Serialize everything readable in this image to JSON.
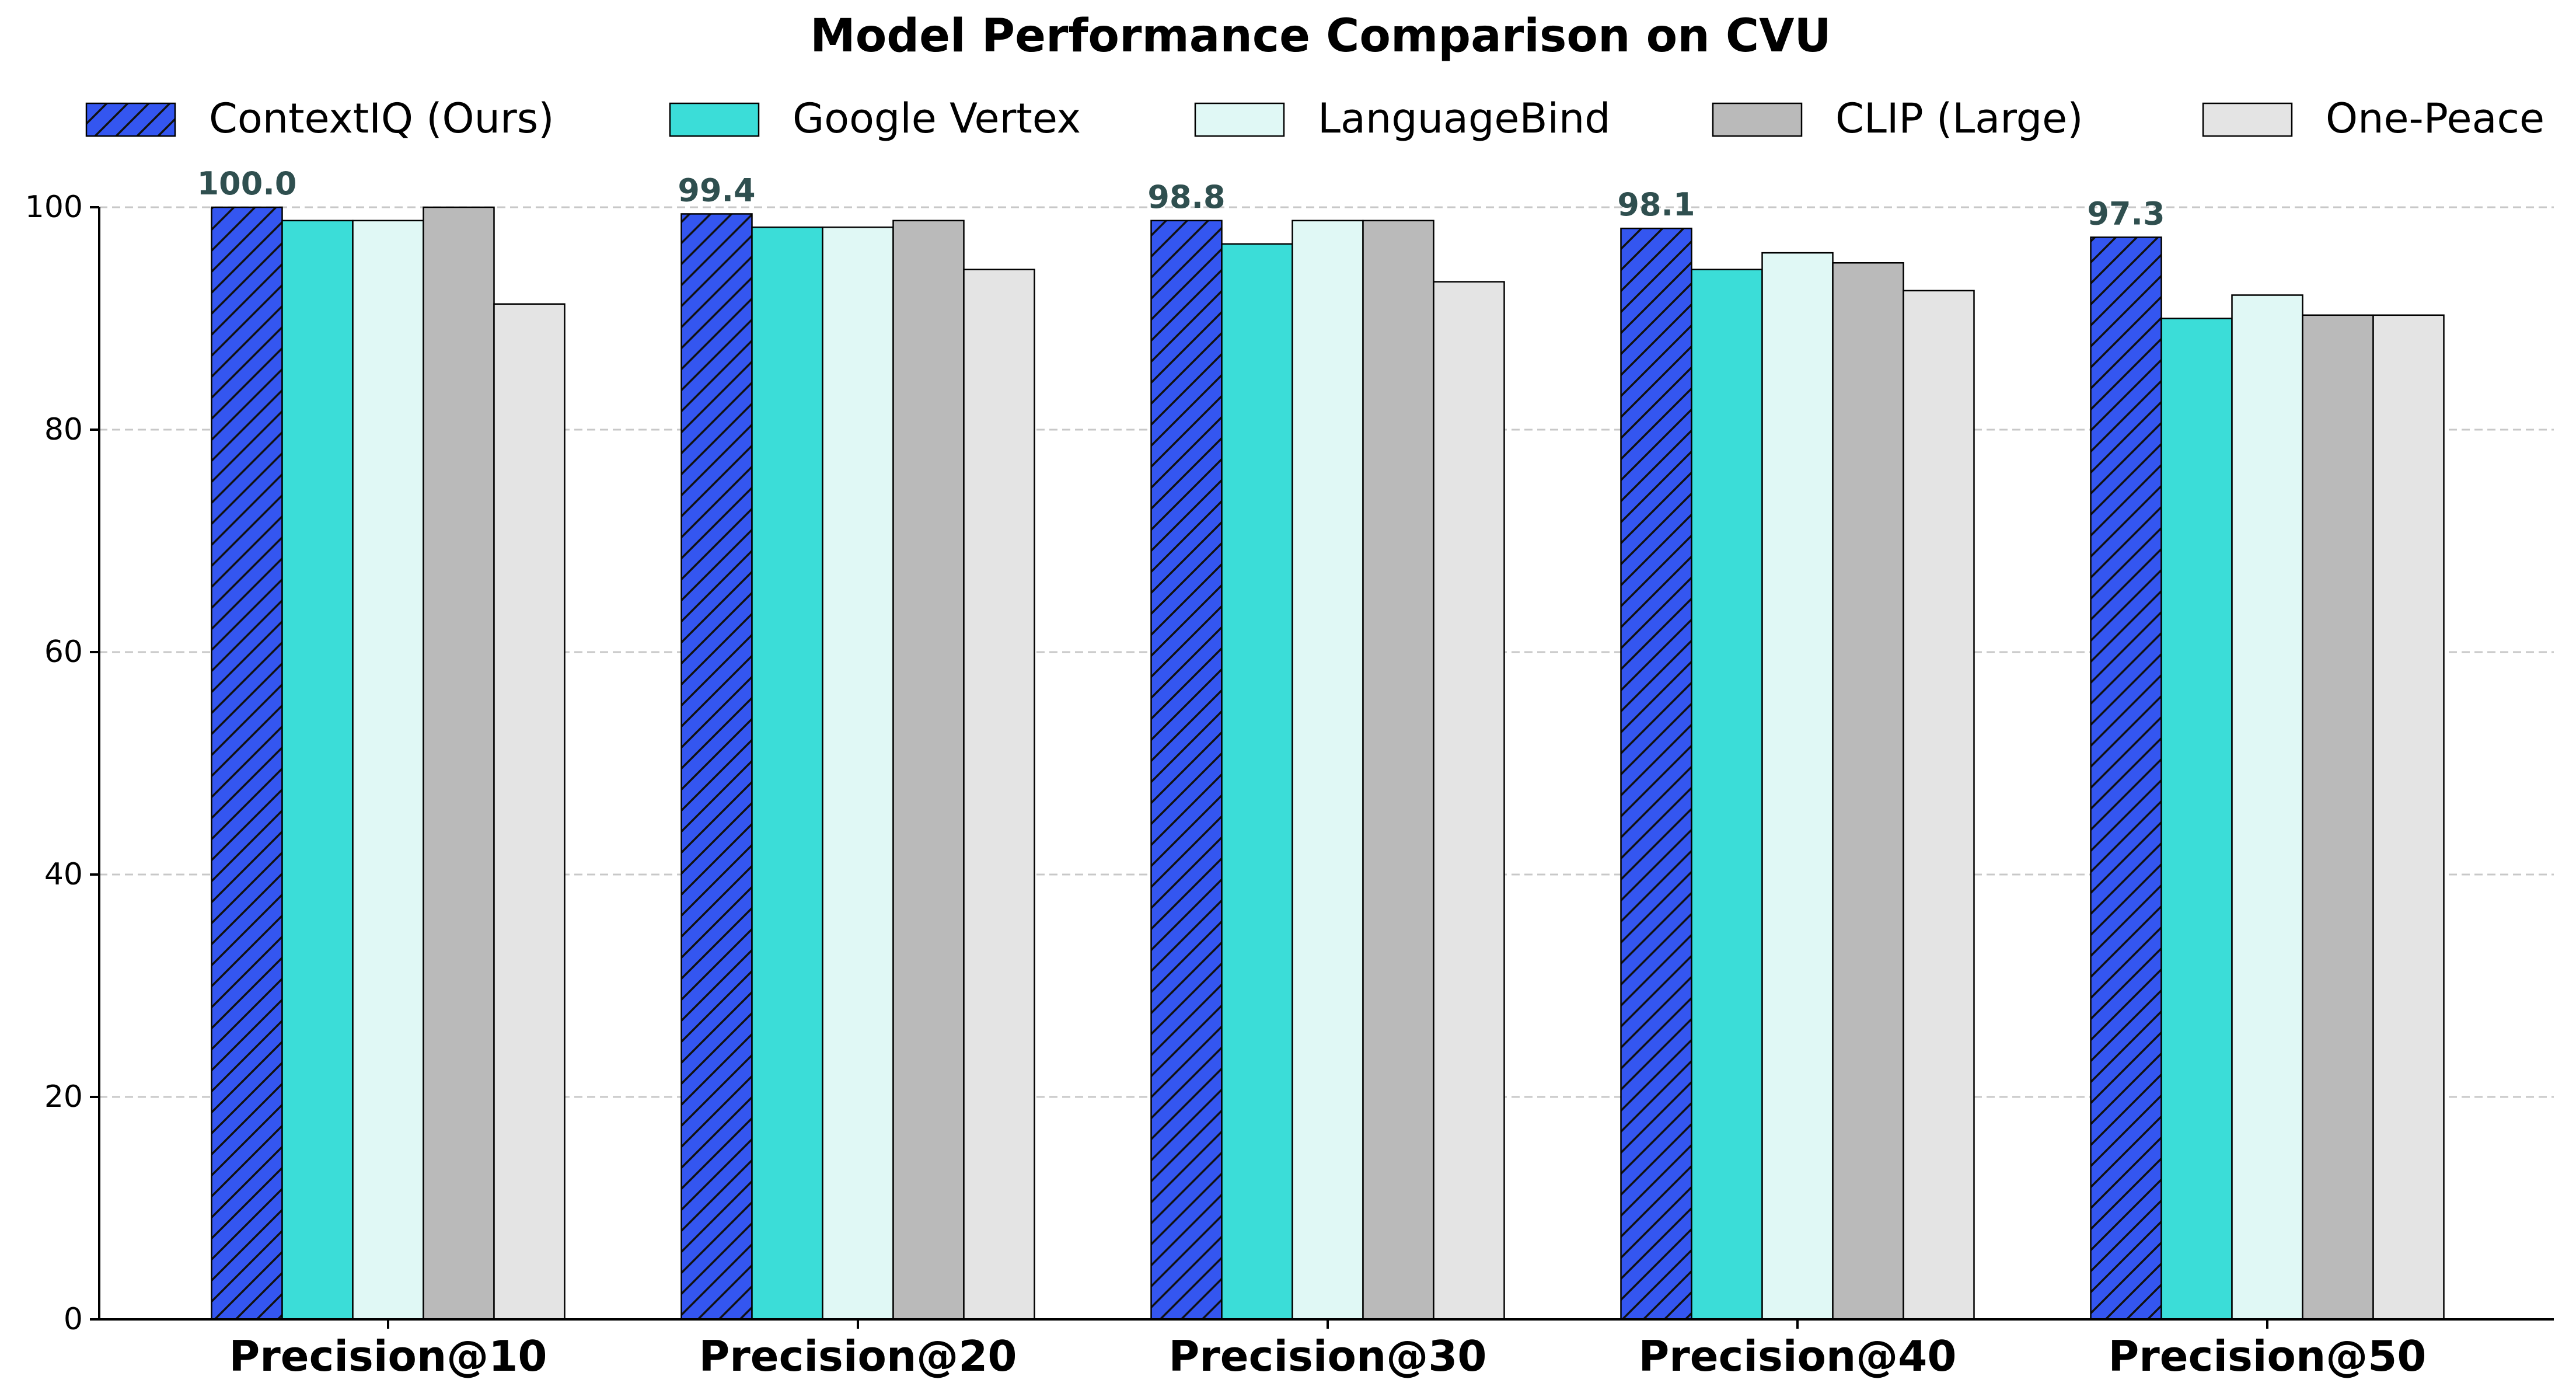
{
  "chart_data": {
    "type": "bar",
    "title": "Model Performance Comparison on CVU",
    "xlabel": "",
    "ylabel": "",
    "categories": [
      "Precision@10",
      "Precision@20",
      "Precision@30",
      "Precision@40",
      "Precision@50"
    ],
    "series": [
      {
        "name": "ContextIQ (Ours)",
        "values": [
          100.0,
          99.4,
          98.8,
          98.1,
          97.3
        ],
        "color": "#3456f0",
        "hatch": true,
        "labels": [
          "100.0",
          "99.4",
          "98.8",
          "98.1",
          "97.3"
        ]
      },
      {
        "name": "Google Vertex",
        "values": [
          98.8,
          98.2,
          96.7,
          94.4,
          90.0
        ],
        "color": "#3bddd8"
      },
      {
        "name": "LanguageBind",
        "values": [
          98.8,
          98.2,
          98.8,
          95.9,
          92.1
        ],
        "color": "#e0f8f5"
      },
      {
        "name": "CLIP (Large)",
        "values": [
          100.0,
          98.8,
          98.8,
          95.0,
          90.3
        ],
        "color": "#bababa"
      },
      {
        "name": "One-Peace",
        "values": [
          91.3,
          94.4,
          93.3,
          92.5,
          90.3
        ],
        "color": "#e4e4e4"
      }
    ],
    "ylim": [
      0,
      100
    ],
    "yticks": [
      0,
      20,
      40,
      60,
      80,
      100
    ],
    "grid": "y-dashed",
    "legend": "top, single row",
    "label_color": "#2f4f4f"
  }
}
